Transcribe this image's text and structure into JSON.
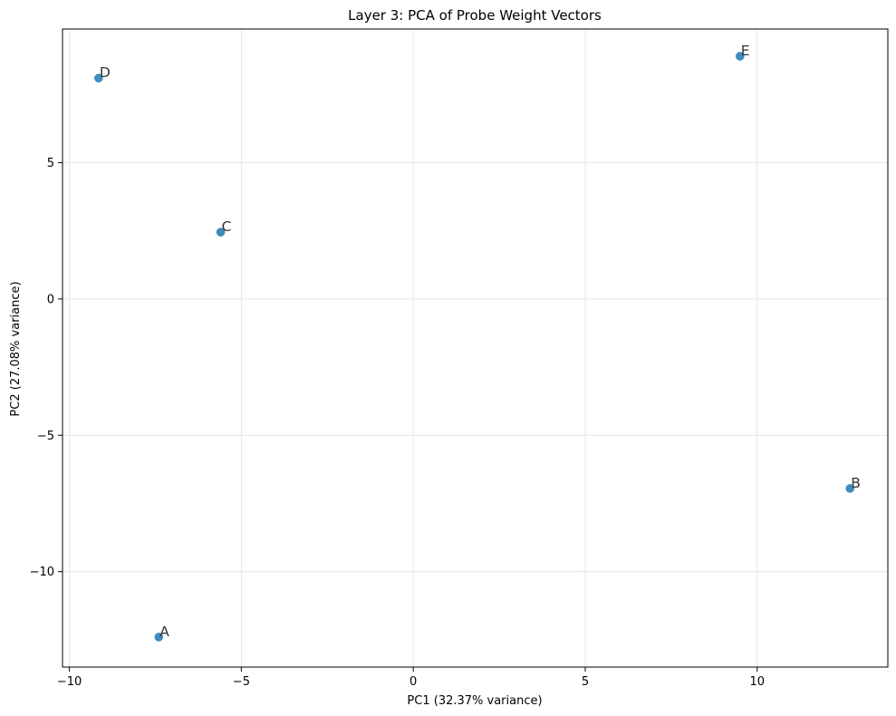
{
  "chart_data": {
    "type": "scatter",
    "title": "Layer 3: PCA of Probe Weight Vectors",
    "xlabel": "PC1 (32.37% variance)",
    "ylabel": "PC2 (27.08% variance)",
    "xlim": [
      -10.2,
      13.8
    ],
    "ylim": [
      -13.5,
      9.9
    ],
    "xticks": [
      -10,
      -5,
      0,
      5,
      10
    ],
    "xtick_labels": [
      "−10",
      "−5",
      "0",
      "5",
      "10"
    ],
    "yticks": [
      -10,
      -5,
      0,
      5
    ],
    "ytick_labels": [
      "−10",
      "−5",
      "0",
      "5"
    ],
    "grid": true,
    "marker_color": "#1f77b4",
    "points": [
      {
        "label": "A",
        "x": -7.4,
        "y": -12.4
      },
      {
        "label": "B",
        "x": 12.7,
        "y": -6.95
      },
      {
        "label": "C",
        "x": -5.6,
        "y": 2.45
      },
      {
        "label": "D",
        "x": -9.15,
        "y": 8.1
      },
      {
        "label": "E",
        "x": 9.5,
        "y": 8.9
      }
    ]
  }
}
